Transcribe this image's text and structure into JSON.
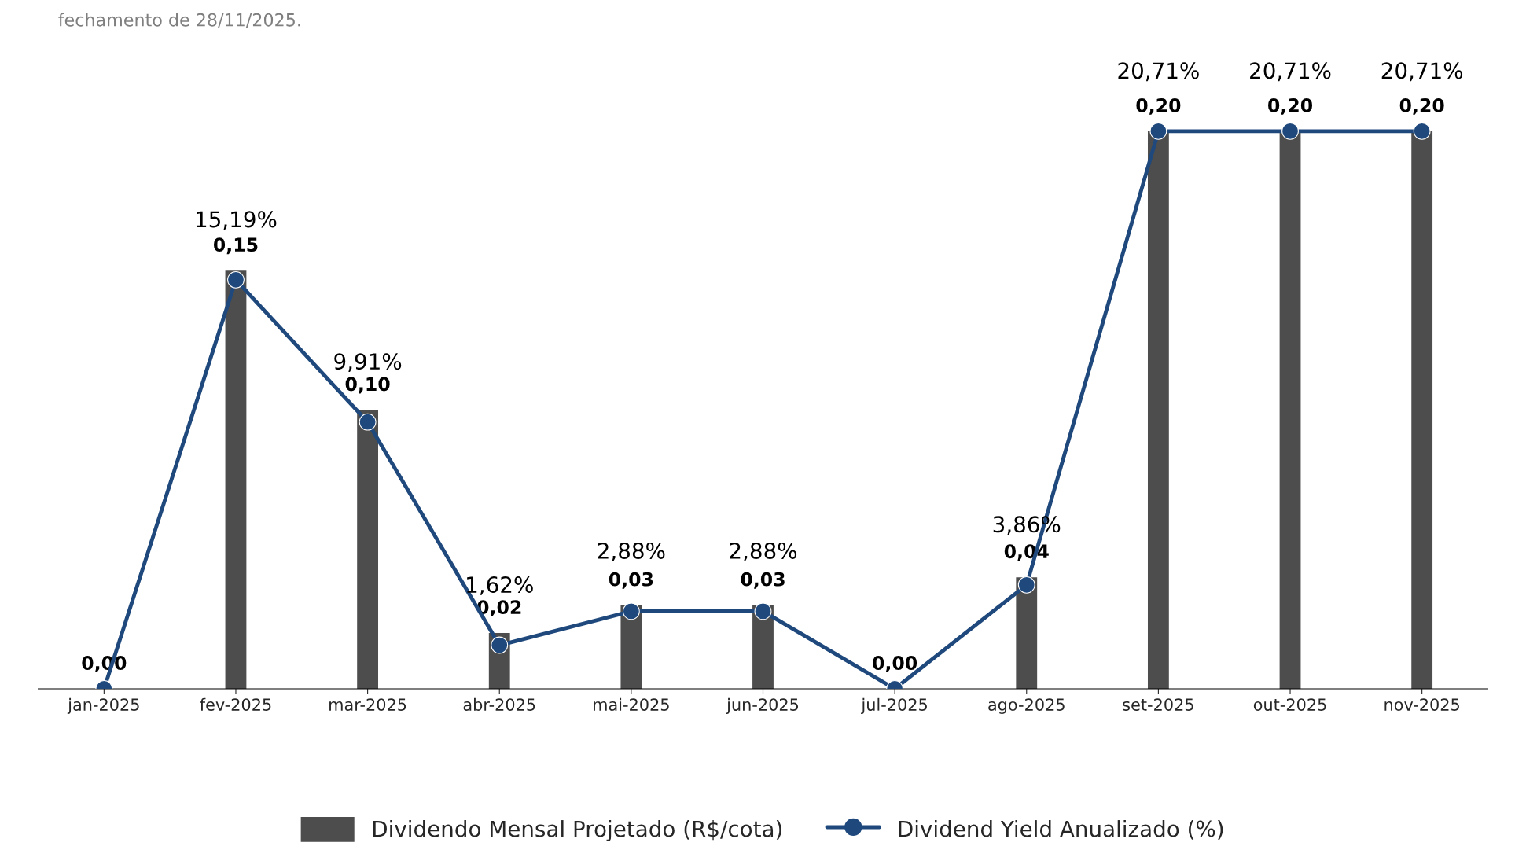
{
  "chart_data": {
    "type": "bar",
    "annotations": [
      "fechamento de 28/11/2025."
    ],
    "categories": [
      "jan-2025",
      "fev-2025",
      "mar-2025",
      "abr-2025",
      "mai-2025",
      "jun-2025",
      "jul-2025",
      "ago-2025",
      "set-2025",
      "out-2025",
      "nov-2025"
    ],
    "series": [
      {
        "name": "Dividendo Mensal Projetado (R$/cota)",
        "color": "#4d4d4d",
        "values": [
          0.0,
          0.15,
          0.1,
          0.02,
          0.03,
          0.03,
          0.0,
          0.04,
          0.2,
          0.2,
          0.2
        ],
        "value_labels": [
          "0,00",
          "0,15",
          "0,10",
          "0,02",
          "0,03",
          "0,03",
          "0,00",
          "0,04",
          "0,20",
          "0,20",
          "0,20"
        ]
      },
      {
        "name": "Dividend Yield Anualizado (%)",
        "type": "line",
        "axis": "y2",
        "color": "#1f497d",
        "marker": "circle",
        "line_style": "solid",
        "values": [
          0.0,
          15.19,
          9.91,
          1.62,
          2.88,
          2.88,
          0.0,
          3.86,
          20.71,
          20.71,
          20.71
        ],
        "value_labels": [
          null,
          "15,19%",
          "9,91%",
          "1,62%",
          "2,88%",
          "2,88%",
          null,
          "3,86%",
          "20,71%",
          "20,71%",
          "20,71%"
        ]
      }
    ],
    "tick_labels": "x",
    "grid": false,
    "legend": "bottom"
  }
}
